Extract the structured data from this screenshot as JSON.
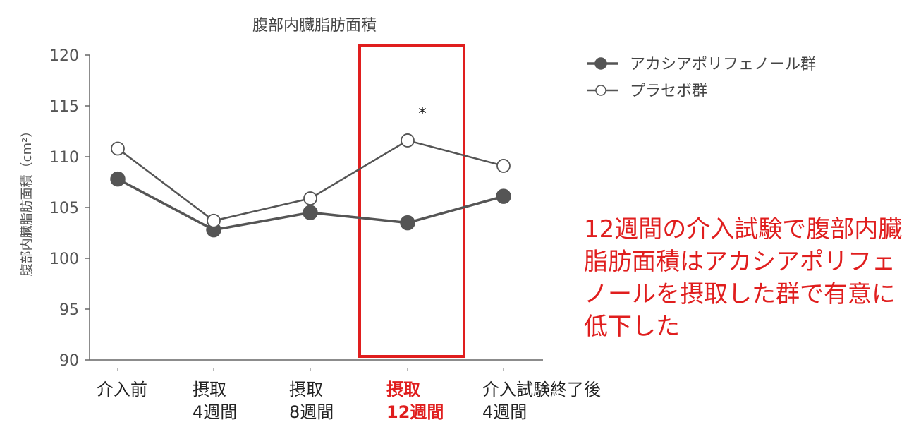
{
  "chart_data": {
    "type": "line",
    "title": "腹部内臓脂肪面積",
    "ylabel": "腹部内臓脂肪面積（cm²）",
    "ylim": [
      90,
      120
    ],
    "yticks": [
      90,
      95,
      100,
      105,
      110,
      115,
      120
    ],
    "categories": [
      [
        "介入前"
      ],
      [
        "摂取",
        "4週間"
      ],
      [
        "摂取",
        "8週間"
      ],
      [
        "摂取",
        "12週間"
      ],
      [
        "介入試験終了後",
        "4週間"
      ]
    ],
    "highlight_category_index": 3,
    "series": [
      {
        "name": "アカシアポリフェノール群",
        "marker": "filled",
        "values": [
          107.8,
          102.8,
          104.5,
          103.5,
          106.1
        ]
      },
      {
        "name": "プラセボ群",
        "marker": "open",
        "values": [
          110.8,
          103.7,
          105.9,
          111.6,
          109.1
        ]
      }
    ],
    "annotation": {
      "text": "*",
      "category_index": 3
    },
    "legend_position": "top-right",
    "colors": {
      "line": "#555555",
      "highlight": "#e01e1e",
      "filled_marker": "#555555",
      "open_marker_fill": "#ffffff"
    }
  },
  "note": "12週間の介入試験で腹部内臓脂肪面積はアカシアポリフェノールを摂取した群で有意に低下した"
}
